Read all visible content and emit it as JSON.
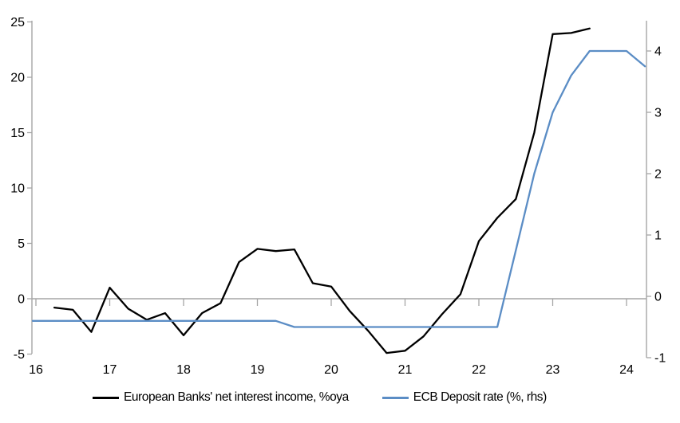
{
  "chart_data": {
    "type": "line",
    "title": "",
    "xlabel": "",
    "ylabel_left": "",
    "ylabel_right": "",
    "grid": "zero-line-only",
    "legend_position": "bottom",
    "x_axis": {
      "range": [
        16,
        24.25
      ],
      "ticks": [
        16,
        17,
        18,
        19,
        20,
        21,
        22,
        23,
        24
      ],
      "tick_labels": [
        "16",
        "17",
        "18",
        "19",
        "20",
        "21",
        "22",
        "23",
        "24"
      ]
    },
    "left_axis": {
      "range": [
        -5,
        25
      ],
      "ticks": [
        25,
        20,
        15,
        10,
        5,
        0,
        -5
      ],
      "tick_labels": [
        "25",
        "20",
        "15",
        "10",
        "5",
        "0",
        "-5"
      ]
    },
    "right_axis": {
      "range": [
        -1,
        4.5
      ],
      "ticks": [
        4,
        3,
        2,
        1,
        0,
        -1
      ],
      "tick_labels": [
        "4",
        "3",
        "2",
        "1",
        "0",
        "-1"
      ]
    },
    "series": [
      {
        "name": "European Banks' net interest income, %oya",
        "axis": "left",
        "color": "#000000",
        "from_axis": false,
        "x": [
          16.25,
          16.5,
          16.75,
          17.0,
          17.25,
          17.5,
          17.75,
          18.0,
          18.25,
          18.5,
          18.75,
          19.0,
          19.25,
          19.5,
          19.75,
          20.0,
          20.25,
          20.5,
          20.75,
          21.0,
          21.25,
          21.5,
          21.75,
          22.0,
          22.25,
          22.5,
          22.75,
          23.0,
          23.25,
          23.5
        ],
        "values": [
          -0.8,
          -1.0,
          -3.0,
          1.0,
          -0.9,
          -1.9,
          -1.3,
          -3.3,
          -1.3,
          -0.4,
          3.3,
          4.5,
          4.3,
          4.45,
          1.4,
          1.1,
          -1.1,
          -2.9,
          -4.9,
          -4.7,
          -3.4,
          -1.4,
          0.4,
          5.2,
          7.3,
          9.0,
          15.0,
          23.9,
          24.0,
          24.4
        ]
      },
      {
        "name": "ECB Deposit rate (%, rhs)",
        "axis": "right",
        "color": "#5b8dc5",
        "from_axis": true,
        "x": [
          16.0,
          16.25,
          16.5,
          16.75,
          17.0,
          17.25,
          17.5,
          17.75,
          18.0,
          18.25,
          18.5,
          18.75,
          19.0,
          19.25,
          19.5,
          19.75,
          20.0,
          20.25,
          20.5,
          20.75,
          21.0,
          21.25,
          21.5,
          21.75,
          22.0,
          22.25,
          22.5,
          22.75,
          23.0,
          23.25,
          23.5,
          23.75,
          24.0,
          24.25
        ],
        "values": [
          -0.4,
          -0.4,
          -0.4,
          -0.4,
          -0.4,
          -0.4,
          -0.4,
          -0.4,
          -0.4,
          -0.4,
          -0.4,
          -0.4,
          -0.4,
          -0.4,
          -0.5,
          -0.5,
          -0.5,
          -0.5,
          -0.5,
          -0.5,
          -0.5,
          -0.5,
          -0.5,
          -0.5,
          -0.5,
          -0.5,
          0.75,
          2.0,
          3.0,
          3.6,
          4.0,
          4.0,
          4.0,
          3.75
        ]
      }
    ]
  },
  "legend": {
    "items": [
      {
        "label": "European Banks' net interest income, %oya",
        "color": "#000000"
      },
      {
        "label": "ECB Deposit rate (%, rhs)",
        "color": "#5b8dc5"
      }
    ]
  },
  "colors": {
    "axis": "#a6a6a6",
    "text": "#000000",
    "background": "#ffffff"
  }
}
